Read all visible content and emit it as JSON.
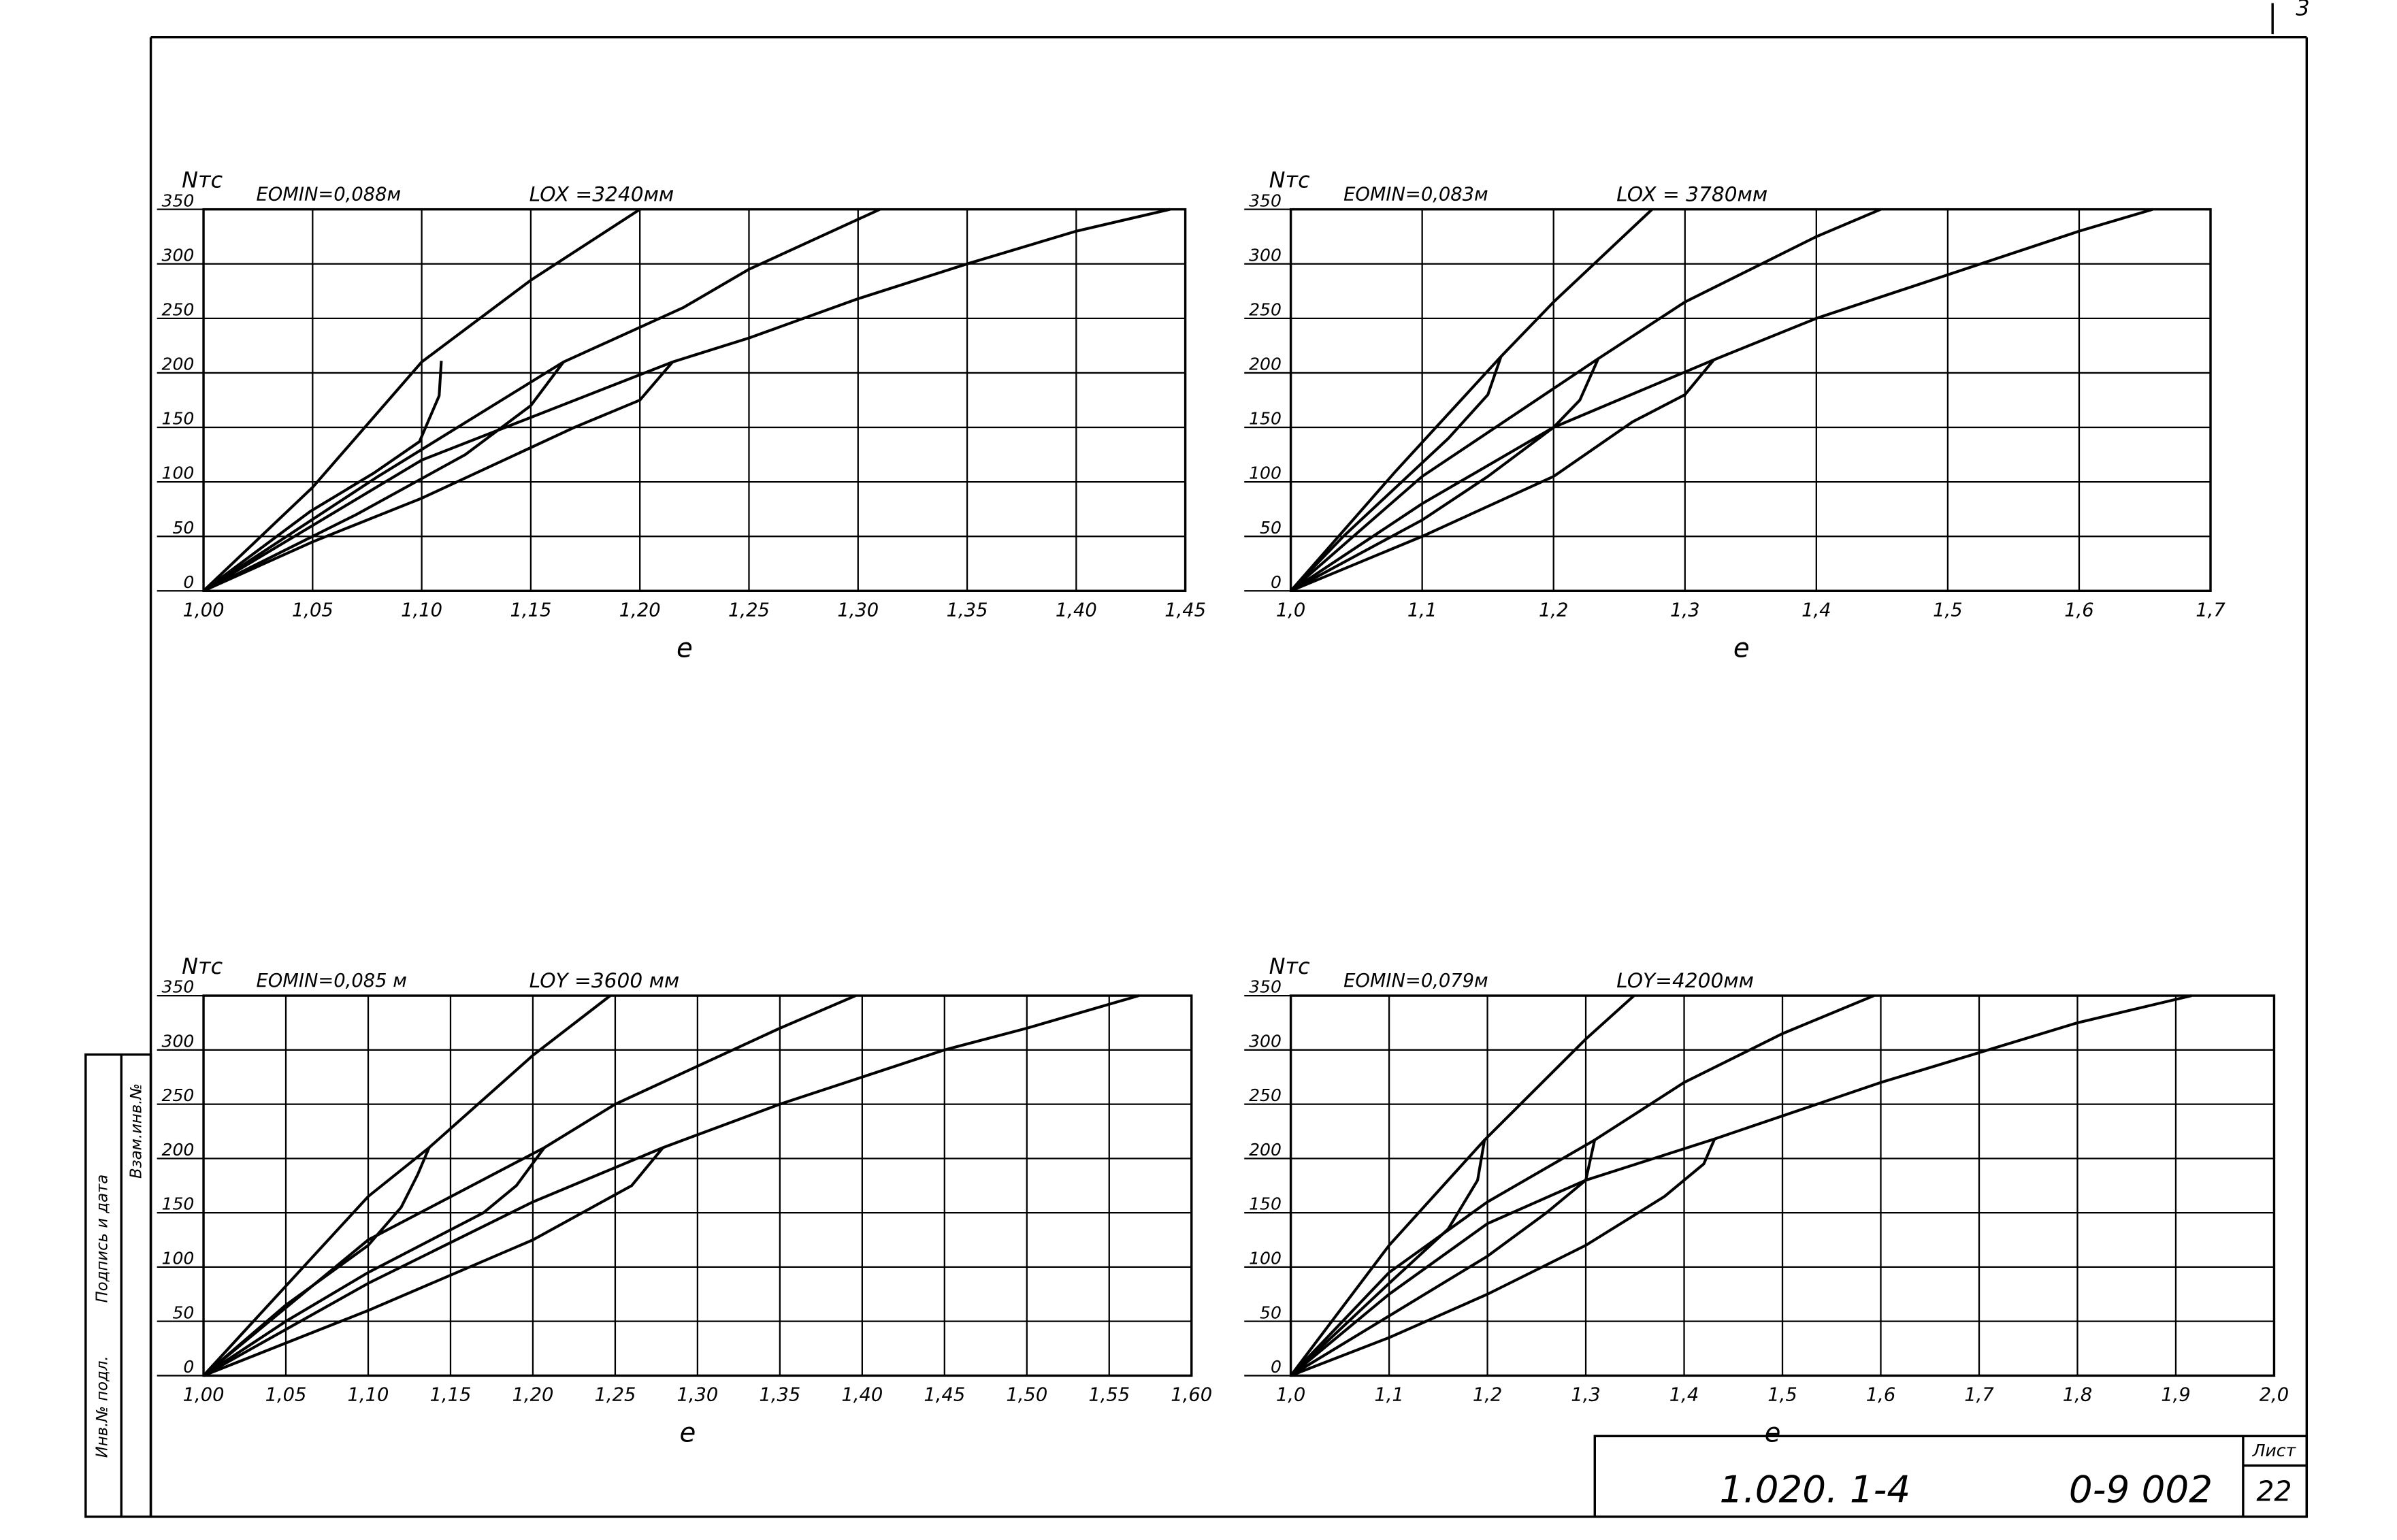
{
  "chart_data": [
    {
      "type": "line",
      "y_label": "Nтс",
      "x_label": "e",
      "annotations": [
        "EOMIN=0,088м",
        "LOX =3240мм"
      ],
      "xlim": [
        1.0,
        1.45
      ],
      "ylim": [
        0,
        350
      ],
      "xticks": [
        {
          "value": 1.0,
          "label": "1,00"
        },
        {
          "value": 1.05,
          "label": "1,05"
        },
        {
          "value": 1.1,
          "label": "1,10"
        },
        {
          "value": 1.15,
          "label": "1,15"
        },
        {
          "value": 1.2,
          "label": "1,20"
        },
        {
          "value": 1.25,
          "label": "1,25"
        },
        {
          "value": 1.3,
          "label": "1,30"
        },
        {
          "value": 1.35,
          "label": "1,35"
        },
        {
          "value": 1.4,
          "label": "1,40"
        },
        {
          "value": 1.45,
          "label": "1,45"
        }
      ],
      "yticks": [
        0,
        50,
        100,
        150,
        200,
        250,
        300,
        350
      ],
      "grid": true,
      "series": [
        {
          "color": "#000000",
          "x": [
            1.0,
            1.05,
            1.1,
            1.15,
            1.2
          ],
          "values": [
            0,
            95,
            210,
            285,
            350
          ]
        },
        {
          "color": "#000000",
          "x": [
            1.109,
            1.108,
            1.099,
            1.078,
            1.049,
            1.0
          ],
          "values": [
            211,
            179,
            137,
            108,
            73,
            0
          ]
        },
        {
          "color": "#000000",
          "x": [
            1.0,
            1.08,
            1.165,
            1.22,
            1.25,
            1.31
          ],
          "values": [
            0,
            105,
            210,
            260,
            295,
            350
          ]
        },
        {
          "color": "#000000",
          "x": [
            1.165,
            1.15,
            1.12,
            1.07,
            1.0
          ],
          "values": [
            210,
            170,
            125,
            70,
            0
          ]
        },
        {
          "color": "#000000",
          "x": [
            1.0,
            1.1,
            1.215,
            1.25,
            1.3,
            1.35,
            1.4,
            1.443
          ],
          "values": [
            0,
            120,
            210,
            232,
            268,
            300,
            330,
            350
          ]
        },
        {
          "color": "#000000",
          "x": [
            1.215,
            1.2,
            1.17,
            1.1,
            1.05,
            1.0
          ],
          "values": [
            210,
            175,
            150,
            85,
            45,
            0
          ]
        }
      ]
    },
    {
      "type": "line",
      "y_label": "Nтс",
      "x_label": "e",
      "annotations": [
        "EOMIN=0,083м",
        "LOX = 3780мм"
      ],
      "xlim": [
        1.0,
        1.7
      ],
      "ylim": [
        0,
        350
      ],
      "xticks": [
        {
          "value": 1.0,
          "label": "1,0"
        },
        {
          "value": 1.1,
          "label": "1,1"
        },
        {
          "value": 1.2,
          "label": "1,2"
        },
        {
          "value": 1.3,
          "label": "1,3"
        },
        {
          "value": 1.4,
          "label": "1,4"
        },
        {
          "value": 1.5,
          "label": "1,5"
        },
        {
          "value": 1.6,
          "label": "1,6"
        },
        {
          "value": 1.7,
          "label": "1,7"
        }
      ],
      "yticks": [
        0,
        50,
        100,
        150,
        200,
        250,
        300,
        350
      ],
      "grid": true,
      "series": [
        {
          "color": "#000000",
          "x": [
            1.0,
            1.08,
            1.16,
            1.2,
            1.275
          ],
          "values": [
            0,
            110,
            215,
            265,
            350
          ]
        },
        {
          "color": "#000000",
          "x": [
            1.16,
            1.15,
            1.12,
            1.08,
            1.04,
            1.0
          ],
          "values": [
            215,
            180,
            140,
            95,
            50,
            0
          ]
        },
        {
          "color": "#000000",
          "x": [
            1.0,
            1.1,
            1.234,
            1.3,
            1.4,
            1.449
          ],
          "values": [
            0,
            105,
            213,
            265,
            325,
            350
          ]
        },
        {
          "color": "#000000",
          "x": [
            1.234,
            1.22,
            1.2,
            1.15,
            1.1,
            1.0
          ],
          "values": [
            213,
            175,
            150,
            105,
            65,
            0
          ]
        },
        {
          "color": "#000000",
          "x": [
            1.0,
            1.1,
            1.2,
            1.322,
            1.4,
            1.5,
            1.6,
            1.656
          ],
          "values": [
            0,
            80,
            150,
            212,
            250,
            290,
            330,
            350
          ]
        },
        {
          "color": "#000000",
          "x": [
            1.322,
            1.3,
            1.26,
            1.2,
            1.1,
            1.0
          ],
          "values": [
            212,
            180,
            155,
            105,
            50,
            0
          ]
        }
      ]
    },
    {
      "type": "line",
      "y_label": "Nтс",
      "x_label": "e",
      "annotations": [
        "EOMIN=0,085 м",
        "LOY =3600 мм"
      ],
      "xlim": [
        1.0,
        1.6
      ],
      "ylim": [
        0,
        350
      ],
      "xticks": [
        {
          "value": 1.0,
          "label": "1,00"
        },
        {
          "value": 1.05,
          "label": "1,05"
        },
        {
          "value": 1.1,
          "label": "1,10"
        },
        {
          "value": 1.15,
          "label": "1,15"
        },
        {
          "value": 1.2,
          "label": "1,20"
        },
        {
          "value": 1.25,
          "label": "1,25"
        },
        {
          "value": 1.3,
          "label": "1,30"
        },
        {
          "value": 1.35,
          "label": "1,35"
        },
        {
          "value": 1.4,
          "label": "1,40"
        },
        {
          "value": 1.45,
          "label": "1,45"
        },
        {
          "value": 1.5,
          "label": "1,50"
        },
        {
          "value": 1.55,
          "label": "1,55"
        },
        {
          "value": 1.6,
          "label": "1,60"
        }
      ],
      "yticks": [
        0,
        50,
        100,
        150,
        200,
        250,
        300,
        350
      ],
      "grid": true,
      "series": [
        {
          "color": "#000000",
          "x": [
            1.0,
            1.1,
            1.137,
            1.2,
            1.247
          ],
          "values": [
            0,
            165,
            210,
            295,
            350
          ]
        },
        {
          "color": "#000000",
          "x": [
            1.137,
            1.13,
            1.12,
            1.1,
            1.05,
            1.0
          ],
          "values": [
            210,
            185,
            155,
            120,
            65,
            0
          ]
        },
        {
          "color": "#000000",
          "x": [
            1.0,
            1.1,
            1.207,
            1.25,
            1.3,
            1.35,
            1.396
          ],
          "values": [
            0,
            125,
            210,
            250,
            285,
            320,
            350
          ]
        },
        {
          "color": "#000000",
          "x": [
            1.207,
            1.19,
            1.17,
            1.1,
            1.05,
            1.0
          ],
          "values": [
            210,
            175,
            150,
            95,
            50,
            0
          ]
        },
        {
          "color": "#000000",
          "x": [
            1.0,
            1.1,
            1.2,
            1.279,
            1.35,
            1.45,
            1.5,
            1.568
          ],
          "values": [
            0,
            85,
            160,
            210,
            250,
            300,
            320,
            350
          ]
        },
        {
          "color": "#000000",
          "x": [
            1.279,
            1.26,
            1.2,
            1.1,
            1.0
          ],
          "values": [
            210,
            175,
            125,
            60,
            0
          ]
        }
      ]
    },
    {
      "type": "line",
      "y_label": "Nтс",
      "x_label": "e",
      "annotations": [
        "EOMIN=0,079м",
        "LOY=4200мм"
      ],
      "xlim": [
        1.0,
        2.0
      ],
      "ylim": [
        0,
        350
      ],
      "xticks": [
        {
          "value": 1.0,
          "label": "1,0"
        },
        {
          "value": 1.1,
          "label": "1,1"
        },
        {
          "value": 1.2,
          "label": "1,2"
        },
        {
          "value": 1.3,
          "label": "1,3"
        },
        {
          "value": 1.4,
          "label": "1,4"
        },
        {
          "value": 1.5,
          "label": "1,5"
        },
        {
          "value": 1.6,
          "label": "1,6"
        },
        {
          "value": 1.7,
          "label": "1,7"
        },
        {
          "value": 1.8,
          "label": "1,8"
        },
        {
          "value": 1.9,
          "label": "1,9"
        },
        {
          "value": 2.0,
          "label": "2,0"
        }
      ],
      "yticks": [
        0,
        50,
        100,
        150,
        200,
        250,
        300,
        350
      ],
      "grid": true,
      "series": [
        {
          "color": "#000000",
          "x": [
            1.0,
            1.1,
            1.197,
            1.3,
            1.349
          ],
          "values": [
            0,
            120,
            217,
            310,
            350
          ]
        },
        {
          "color": "#000000",
          "x": [
            1.197,
            1.19,
            1.16,
            1.1,
            1.0
          ],
          "values": [
            217,
            180,
            135,
            85,
            0
          ]
        },
        {
          "color": "#000000",
          "x": [
            1.0,
            1.1,
            1.2,
            1.309,
            1.4,
            1.5,
            1.593
          ],
          "values": [
            0,
            95,
            160,
            217,
            270,
            315,
            350
          ]
        },
        {
          "color": "#000000",
          "x": [
            1.309,
            1.3,
            1.26,
            1.2,
            1.1,
            1.0
          ],
          "values": [
            217,
            180,
            150,
            110,
            55,
            0
          ]
        },
        {
          "color": "#000000",
          "x": [
            1.0,
            1.1,
            1.2,
            1.3,
            1.431,
            1.6,
            1.8,
            1.916
          ],
          "values": [
            0,
            75,
            140,
            180,
            218,
            270,
            325,
            350
          ]
        },
        {
          "color": "#000000",
          "x": [
            1.431,
            1.42,
            1.38,
            1.3,
            1.2,
            1.1,
            1.0
          ],
          "values": [
            218,
            195,
            165,
            120,
            75,
            35,
            0
          ]
        }
      ]
    }
  ],
  "stamp": {
    "designation": "1.020. 1-4",
    "code": "0-9 002",
    "sheet_label": "Лист",
    "sheet": "22",
    "corner": "3",
    "side": [
      "Инв.№ подл.",
      "Подпись и дата",
      "Взам.инв.№"
    ]
  }
}
